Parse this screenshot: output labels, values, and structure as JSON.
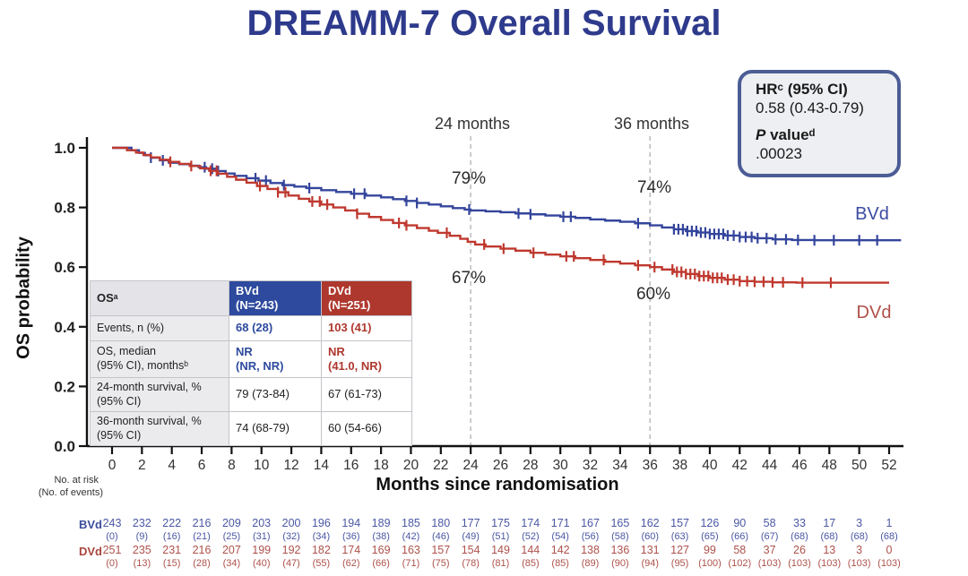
{
  "title": "DREAMM-7 Overall Survival",
  "hr_box": {
    "hr_label": "HRᶜ (95% CI)",
    "hr_value": "0.58 (0.43-0.79)",
    "p_label_italic": "P",
    "p_label_rest": " valueᵈ",
    "p_value": ".00023"
  },
  "annotations": {
    "ref_24": "24 months",
    "ref_36": "36 months",
    "bvd_24_pct": "79%",
    "bvd_36_pct": "74%",
    "dvd_24_pct": "67%",
    "dvd_36_pct": "60%",
    "bvd_curve_label": "BVd",
    "dvd_curve_label": "DVd"
  },
  "chart_data": {
    "type": "line",
    "subtype": "kaplan-meier-step",
    "title": "DREAMM-7 Overall Survival",
    "xlabel": "Months since randomisation",
    "ylabel": "OS probability",
    "xlim": [
      0,
      52
    ],
    "ylim": [
      0,
      1.0
    ],
    "xticks": [
      0,
      2,
      4,
      6,
      8,
      10,
      12,
      14,
      16,
      18,
      20,
      22,
      24,
      26,
      28,
      30,
      32,
      34,
      36,
      38,
      40,
      42,
      44,
      46,
      48,
      50,
      52
    ],
    "yticks": [
      1.0,
      0.8,
      0.6,
      0.4,
      0.2,
      0.0
    ],
    "grid": false,
    "reference_lines_x": [
      24,
      36
    ],
    "annotated_points": [
      {
        "series": "BVd",
        "month": 24,
        "survival_pct": 79
      },
      {
        "series": "BVd",
        "month": 36,
        "survival_pct": 74
      },
      {
        "series": "DVd",
        "month": 24,
        "survival_pct": 67
      },
      {
        "series": "DVd",
        "month": 36,
        "survival_pct": 60
      }
    ],
    "series": [
      {
        "name": "BVd",
        "color": "#34459c",
        "end_month": 52.8,
        "steps": [
          [
            0,
            1.0
          ],
          [
            1.3,
            0.992
          ],
          [
            1.8,
            0.983
          ],
          [
            2.2,
            0.975
          ],
          [
            2.6,
            0.967
          ],
          [
            3.2,
            0.958
          ],
          [
            3.8,
            0.95
          ],
          [
            4.5,
            0.945
          ],
          [
            5.2,
            0.94
          ],
          [
            5.8,
            0.935
          ],
          [
            6.3,
            0.93
          ],
          [
            7.0,
            0.922
          ],
          [
            7.6,
            0.914
          ],
          [
            8.2,
            0.906
          ],
          [
            9.0,
            0.898
          ],
          [
            9.8,
            0.89
          ],
          [
            10.6,
            0.882
          ],
          [
            11.4,
            0.875
          ],
          [
            12.2,
            0.87
          ],
          [
            13.0,
            0.865
          ],
          [
            14.0,
            0.858
          ],
          [
            15.0,
            0.852
          ],
          [
            16.0,
            0.846
          ],
          [
            17.0,
            0.84
          ],
          [
            18.0,
            0.834
          ],
          [
            18.8,
            0.828
          ],
          [
            19.6,
            0.822
          ],
          [
            20.4,
            0.815
          ],
          [
            21.2,
            0.81
          ],
          [
            22.0,
            0.804
          ],
          [
            22.8,
            0.798
          ],
          [
            23.6,
            0.793
          ],
          [
            24.0,
            0.79
          ],
          [
            25.0,
            0.787
          ],
          [
            26.0,
            0.784
          ],
          [
            27.0,
            0.78
          ],
          [
            28.0,
            0.777
          ],
          [
            29.0,
            0.773
          ],
          [
            30.0,
            0.769
          ],
          [
            31.0,
            0.765
          ],
          [
            32.0,
            0.76
          ],
          [
            33.0,
            0.756
          ],
          [
            34.0,
            0.752
          ],
          [
            35.0,
            0.747
          ],
          [
            36.0,
            0.74
          ],
          [
            36.8,
            0.733
          ],
          [
            37.6,
            0.727
          ],
          [
            38.4,
            0.721
          ],
          [
            39.2,
            0.716
          ],
          [
            40.0,
            0.711
          ],
          [
            41.0,
            0.706
          ],
          [
            42.0,
            0.701
          ],
          [
            43.0,
            0.697
          ],
          [
            44.2,
            0.693
          ],
          [
            45.5,
            0.691
          ],
          [
            47.0,
            0.69
          ]
        ],
        "censor_months": [
          2.6,
          3.4,
          6.2,
          6.7,
          7.1,
          9.6,
          10.3,
          11.5,
          13.2,
          16.2,
          16.9,
          19.7,
          20.4,
          23.9,
          27.2,
          28.0,
          30.2,
          30.7,
          35.2,
          37.6,
          37.9,
          38.2,
          38.5,
          38.8,
          39.1,
          39.4,
          39.7,
          40.0,
          40.3,
          40.6,
          40.9,
          41.2,
          41.6,
          42.0,
          42.4,
          42.8,
          43.2,
          43.8,
          44.4,
          45.1,
          45.9,
          47.0,
          48.3,
          50.0,
          51.2
        ]
      },
      {
        "name": "DVd",
        "color": "#bf392f",
        "end_month": 52.0,
        "steps": [
          [
            0,
            1.0
          ],
          [
            1.0,
            0.992
          ],
          [
            1.6,
            0.984
          ],
          [
            2.1,
            0.976
          ],
          [
            2.6,
            0.968
          ],
          [
            3.2,
            0.96
          ],
          [
            3.8,
            0.953
          ],
          [
            4.5,
            0.946
          ],
          [
            5.2,
            0.939
          ],
          [
            5.9,
            0.931
          ],
          [
            6.5,
            0.923
          ],
          [
            7.1,
            0.913
          ],
          [
            7.7,
            0.903
          ],
          [
            8.3,
            0.893
          ],
          [
            9.0,
            0.883
          ],
          [
            9.7,
            0.872
          ],
          [
            10.4,
            0.862
          ],
          [
            11.1,
            0.851
          ],
          [
            11.8,
            0.84
          ],
          [
            12.5,
            0.829
          ],
          [
            13.2,
            0.82
          ],
          [
            14.0,
            0.81
          ],
          [
            14.8,
            0.8
          ],
          [
            15.6,
            0.79
          ],
          [
            16.4,
            0.779
          ],
          [
            17.2,
            0.768
          ],
          [
            18.0,
            0.758
          ],
          [
            18.8,
            0.748
          ],
          [
            19.6,
            0.74
          ],
          [
            20.4,
            0.731
          ],
          [
            21.2,
            0.722
          ],
          [
            21.8,
            0.715
          ],
          [
            22.6,
            0.705
          ],
          [
            23.3,
            0.695
          ],
          [
            23.8,
            0.685
          ],
          [
            24.3,
            0.676
          ],
          [
            25.0,
            0.669
          ],
          [
            26.0,
            0.662
          ],
          [
            27.0,
            0.655
          ],
          [
            28.0,
            0.648
          ],
          [
            29.0,
            0.642
          ],
          [
            30.0,
            0.636
          ],
          [
            31.0,
            0.63
          ],
          [
            32.0,
            0.624
          ],
          [
            33.0,
            0.618
          ],
          [
            34.0,
            0.612
          ],
          [
            35.0,
            0.606
          ],
          [
            36.0,
            0.6
          ],
          [
            36.8,
            0.592
          ],
          [
            37.6,
            0.584
          ],
          [
            38.4,
            0.577
          ],
          [
            39.2,
            0.57
          ],
          [
            40.0,
            0.564
          ],
          [
            41.0,
            0.558
          ],
          [
            42.0,
            0.553
          ],
          [
            43.0,
            0.551
          ],
          [
            44.2,
            0.549
          ],
          [
            45.8,
            0.548
          ]
        ],
        "censor_months": [
          3.9,
          5.3,
          6.6,
          7.0,
          9.9,
          11.1,
          11.6,
          13.4,
          13.9,
          14.4,
          16.4,
          19.2,
          19.7,
          22.4,
          24.9,
          26.2,
          28.2,
          30.4,
          30.9,
          32.9,
          35.2,
          36.3,
          37.5,
          37.8,
          38.1,
          38.4,
          38.7,
          39.0,
          39.3,
          39.6,
          39.9,
          40.2,
          40.5,
          40.8,
          41.2,
          41.6,
          42.0,
          42.5,
          43.0,
          43.6,
          44.2,
          44.9,
          46.2,
          48.1
        ]
      }
    ]
  },
  "stats_table": {
    "header": {
      "label": "OSᵃ",
      "bvd_line1": "BVd",
      "bvd_line2": "(N=243)",
      "dvd_line1": "DVd",
      "dvd_line2": "(N=251)"
    },
    "rows": [
      {
        "label1": "Events, n (%)",
        "label2": "",
        "bvd1": "68 (28)",
        "bvd2": "",
        "dvd1": "103 (41)",
        "dvd2": ""
      },
      {
        "label1": "OS, median",
        "label2": "(95% CI), monthsᵇ",
        "bvd1": "NR",
        "bvd2": "(NR, NR)",
        "dvd1": "NR",
        "dvd2": "(41.0, NR)"
      },
      {
        "label1": "24-month survival, %",
        "label2": "(95% CI)",
        "bvd1": "79 (73-84)",
        "bvd2": "",
        "dvd1": "67 (61-73)",
        "dvd2": ""
      },
      {
        "label1": "36-month survival, %",
        "label2": "(95% CI)",
        "bvd1": "74 (68-79)",
        "bvd2": "",
        "dvd1": "60 (54-66)",
        "dvd2": ""
      }
    ]
  },
  "risk_table": {
    "note_line1": "No. at risk",
    "note_line2": "(No. of events)",
    "months": [
      0,
      2,
      4,
      6,
      8,
      10,
      12,
      14,
      16,
      18,
      20,
      22,
      24,
      26,
      28,
      30,
      32,
      34,
      36,
      38,
      40,
      42,
      44,
      46,
      48,
      50,
      52
    ],
    "rows": [
      {
        "name": "BVd",
        "at_risk": [
          243,
          232,
          222,
          216,
          209,
          203,
          200,
          196,
          194,
          189,
          185,
          180,
          177,
          175,
          174,
          171,
          167,
          165,
          162,
          157,
          126,
          90,
          58,
          33,
          17,
          3,
          1
        ],
        "events": [
          0,
          9,
          16,
          21,
          25,
          31,
          32,
          34,
          36,
          38,
          42,
          46,
          49,
          51,
          52,
          54,
          56,
          58,
          60,
          63,
          65,
          66,
          67,
          68,
          68,
          68,
          68
        ]
      },
      {
        "name": "DVd",
        "at_risk": [
          251,
          235,
          231,
          216,
          207,
          199,
          192,
          182,
          174,
          169,
          163,
          157,
          154,
          149,
          144,
          142,
          138,
          136,
          131,
          127,
          99,
          58,
          37,
          26,
          13,
          3,
          0
        ],
        "events": [
          0,
          13,
          15,
          28,
          34,
          40,
          47,
          55,
          62,
          66,
          71,
          75,
          78,
          81,
          85,
          85,
          89,
          90,
          94,
          95,
          100,
          102,
          103,
          103,
          103,
          103,
          103
        ]
      }
    ]
  }
}
